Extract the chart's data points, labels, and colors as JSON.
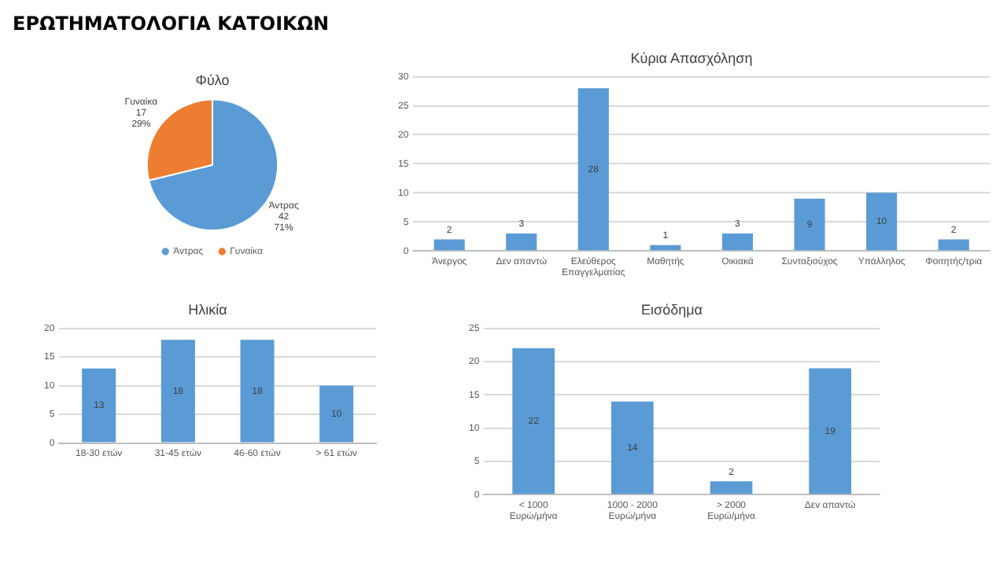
{
  "chart_data": [
    {
      "type": "pie",
      "title": "Φύλο",
      "annotations": [
        "ΕΡΩΤΗΜΑΤΟΛΟΓΙΑ ΚΑΤΟΙΚΩΝ"
      ],
      "categories": [
        "Άντρας",
        "Γυναίκα"
      ],
      "values": [
        42,
        17
      ],
      "colors": [
        "#5b9bd5",
        "#ed7d31"
      ],
      "value_labels": [
        "42\n71%",
        "17\n29%"
      ],
      "legend": "bottom"
    },
    {
      "type": "bar",
      "title": "Κύρια Απασχόληση",
      "categories": [
        "Άνεργος",
        "Δεν απαντώ",
        "Ελεύθερος Επαγγελματίας",
        "Μαθητής",
        "Οικιακά",
        "Συνταξιούχος",
        "Υπάλληλος",
        "Φοιτητής/τρια"
      ],
      "values": [
        2,
        3,
        28,
        1,
        3,
        9,
        10,
        2
      ],
      "color": "#5b9bd5",
      "ylim": [
        0,
        30
      ],
      "yticks": [
        0,
        5,
        10,
        15,
        20,
        25,
        30
      ],
      "grid": "y",
      "data_labels": true,
      "legend": false
    },
    {
      "type": "bar",
      "title": "Ηλικία",
      "categories": [
        "18-30 ετών",
        "31-45 ετών",
        "46-60 ετών",
        "> 61 ετών"
      ],
      "values": [
        13,
        18,
        18,
        10
      ],
      "color": "#5b9bd5",
      "ylim": [
        0,
        20
      ],
      "yticks": [
        0,
        5,
        10,
        15,
        20
      ],
      "grid": "y",
      "data_labels": true,
      "legend": false
    },
    {
      "type": "bar",
      "title": "Εισόδημα",
      "categories": [
        "< 1000 Ευρώ/μήνα",
        "1000 - 2000 Ευρώ/μήνα",
        "> 2000 Ευρώ/μήνα",
        "Δεν απαντώ"
      ],
      "values": [
        22,
        14,
        2,
        19
      ],
      "color": "#5b9bd5",
      "ylim": [
        0,
        25
      ],
      "yticks": [
        0,
        5,
        10,
        15,
        20,
        25
      ],
      "grid": "y",
      "data_labels": true,
      "legend": false
    }
  ]
}
